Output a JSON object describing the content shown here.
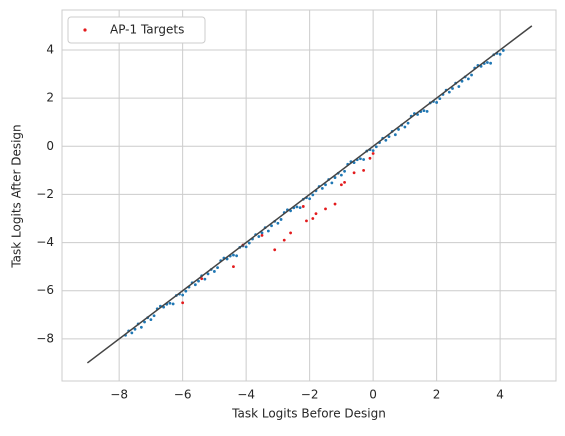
{
  "chart_data": {
    "type": "scatter",
    "xlabel": "Task Logits Before Design",
    "ylabel": "Task Logits After Design",
    "xlim": [
      -9.8,
      5.76
    ],
    "ylim": [
      -9.75,
      5.66
    ],
    "xticks": [
      {
        "value": -8,
        "label": "−8"
      },
      {
        "value": -6,
        "label": "−6"
      },
      {
        "value": -4,
        "label": "−4"
      },
      {
        "value": -2,
        "label": "−2"
      },
      0,
      2,
      4
    ],
    "yticks": [
      {
        "value": -8,
        "label": "−8"
      },
      {
        "value": -6,
        "label": "−6"
      },
      {
        "value": -4,
        "label": "−4"
      },
      {
        "value": -2,
        "label": "−2"
      },
      0,
      2,
      4
    ],
    "grid": true,
    "legend": "upper left",
    "reference_line": {
      "x": [
        -9,
        5
      ],
      "y": [
        -9,
        5
      ],
      "color": "#444444"
    },
    "series": [
      {
        "color": "#1f77b4",
        "x": [
          -7.8,
          -7.6,
          -7.4,
          -7.2,
          -7.0,
          -6.8,
          -6.6,
          -6.4,
          -6.2,
          -6.0,
          -5.8,
          -5.6,
          -5.4,
          -5.2,
          -5.0,
          -4.8,
          -4.6,
          -4.4,
          -4.2,
          -4.0,
          -3.8,
          -3.6,
          -3.4,
          -3.2,
          -3.0,
          -2.8,
          -2.6,
          -2.4,
          -2.2,
          -2.0,
          -1.8,
          -1.6,
          -1.4,
          -1.2,
          -1.0,
          -0.8,
          -0.6,
          -0.4,
          -0.2,
          0.0,
          0.2,
          0.4,
          0.6,
          0.8,
          1.0,
          1.2,
          1.4,
          1.6,
          1.8,
          2.0,
          2.2,
          2.4,
          2.6,
          2.8,
          3.0,
          3.2,
          3.4,
          3.6,
          3.8,
          4.0,
          -7.7,
          -7.5,
          -7.3,
          -7.1,
          -6.9,
          -6.7,
          -6.5,
          -6.3,
          -6.1,
          -5.9,
          -5.7,
          -5.5,
          -5.3,
          -5.1,
          -4.9,
          -4.7,
          -4.5,
          -4.3,
          -4.1,
          -3.9,
          -3.7,
          -3.5,
          -3.3,
          -3.1,
          -2.9,
          -2.7,
          -2.5,
          -2.3,
          -2.1,
          -1.9,
          -1.7,
          -1.5,
          -1.3,
          -1.1,
          -0.9,
          -0.7,
          -0.5,
          -0.3,
          -0.1,
          0.1,
          0.3,
          0.5,
          0.7,
          0.9,
          1.1,
          1.3,
          1.5,
          1.7,
          1.9,
          2.1,
          2.3,
          2.5,
          2.7,
          2.9,
          3.1,
          3.3,
          3.5,
          3.7,
          3.9,
          4.1
        ],
        "values": [
          -7.85,
          -7.75,
          -7.38,
          -7.3,
          -7.2,
          -6.75,
          -6.68,
          -6.52,
          -6.2,
          -6.18,
          -5.85,
          -5.75,
          -5.38,
          -5.3,
          -5.2,
          -4.75,
          -4.68,
          -4.52,
          -4.2,
          -4.18,
          -3.85,
          -3.75,
          -3.38,
          -3.3,
          -3.2,
          -2.75,
          -2.68,
          -2.52,
          -2.2,
          -2.18,
          -1.85,
          -1.75,
          -1.38,
          -1.3,
          -1.2,
          -0.75,
          -0.68,
          -0.52,
          -0.2,
          -0.18,
          0.15,
          0.25,
          0.62,
          0.7,
          0.8,
          1.25,
          1.32,
          1.48,
          1.8,
          1.82,
          2.15,
          2.25,
          2.62,
          2.7,
          2.8,
          3.25,
          3.32,
          3.48,
          3.8,
          3.82,
          -7.67,
          -7.6,
          -7.52,
          -7.12,
          -7.04,
          -6.64,
          -6.56,
          -6.55,
          -6.14,
          -6.02,
          -5.67,
          -5.6,
          -5.52,
          -5.12,
          -5.04,
          -4.64,
          -4.56,
          -4.55,
          -4.14,
          -4.02,
          -3.67,
          -3.6,
          -3.52,
          -3.12,
          -3.04,
          -2.64,
          -2.56,
          -2.55,
          -2.14,
          -2.02,
          -1.67,
          -1.6,
          -1.52,
          -1.12,
          -1.04,
          -0.64,
          -0.56,
          -0.55,
          -0.14,
          -0.02,
          0.33,
          0.4,
          0.48,
          0.88,
          0.96,
          1.36,
          1.44,
          1.45,
          1.86,
          1.98,
          2.33,
          2.4,
          2.48,
          2.88,
          2.96,
          3.36,
          3.44,
          3.45,
          3.86,
          3.98
        ]
      },
      {
        "name": "AP-1 Targets",
        "color": "#e31a1c",
        "x": [
          -4.4,
          -4.1,
          -3.1,
          -2.8,
          -2.6,
          -2.1,
          -1.9,
          -1.8,
          -1.5,
          -1.2,
          -1.0,
          -0.9,
          -0.6,
          -0.3,
          -0.1,
          0.0,
          -5.4,
          -6.0,
          -3.5,
          -2.2
        ],
        "values": [
          -5.0,
          -4.1,
          -4.3,
          -3.9,
          -3.6,
          -3.1,
          -3.0,
          -2.8,
          -2.6,
          -2.4,
          -1.6,
          -1.5,
          -1.1,
          -1.0,
          -0.5,
          -0.3,
          -5.5,
          -6.5,
          -3.7,
          -2.5
        ]
      }
    ]
  }
}
